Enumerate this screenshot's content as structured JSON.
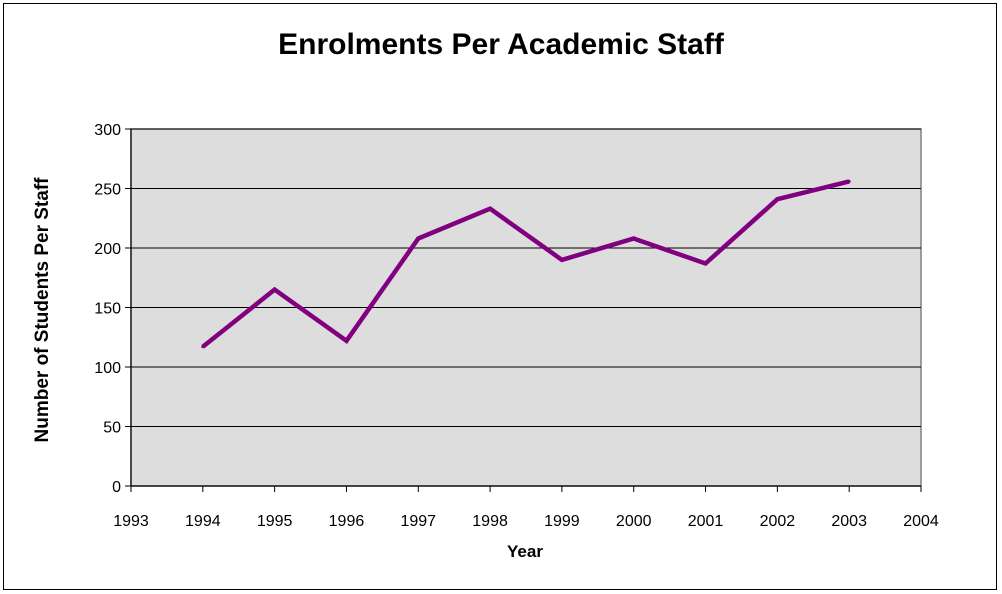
{
  "chart_data": {
    "type": "line",
    "title": "Enrolments Per Academic Staff",
    "xlabel": "Year",
    "ylabel": "Number of Students Per Staff",
    "xlim": [
      1993,
      2004
    ],
    "ylim": [
      0,
      300
    ],
    "xticks": [
      "1993",
      "1994",
      "1995",
      "1996",
      "1997",
      "1998",
      "1999",
      "2000",
      "2001",
      "2002",
      "2003",
      "2004"
    ],
    "yticks": [
      "0",
      "50",
      "100",
      "150",
      "200",
      "250",
      "300"
    ],
    "grid": "horizontal",
    "plot_background": "#dddddd",
    "series": [
      {
        "color": "#800080",
        "x": [
          1994,
          1995,
          1996,
          1997,
          1998,
          1999,
          2000,
          2001,
          2002,
          2003
        ],
        "y": [
          117,
          165,
          122,
          208,
          233,
          190,
          208,
          187,
          241,
          256
        ]
      }
    ]
  }
}
